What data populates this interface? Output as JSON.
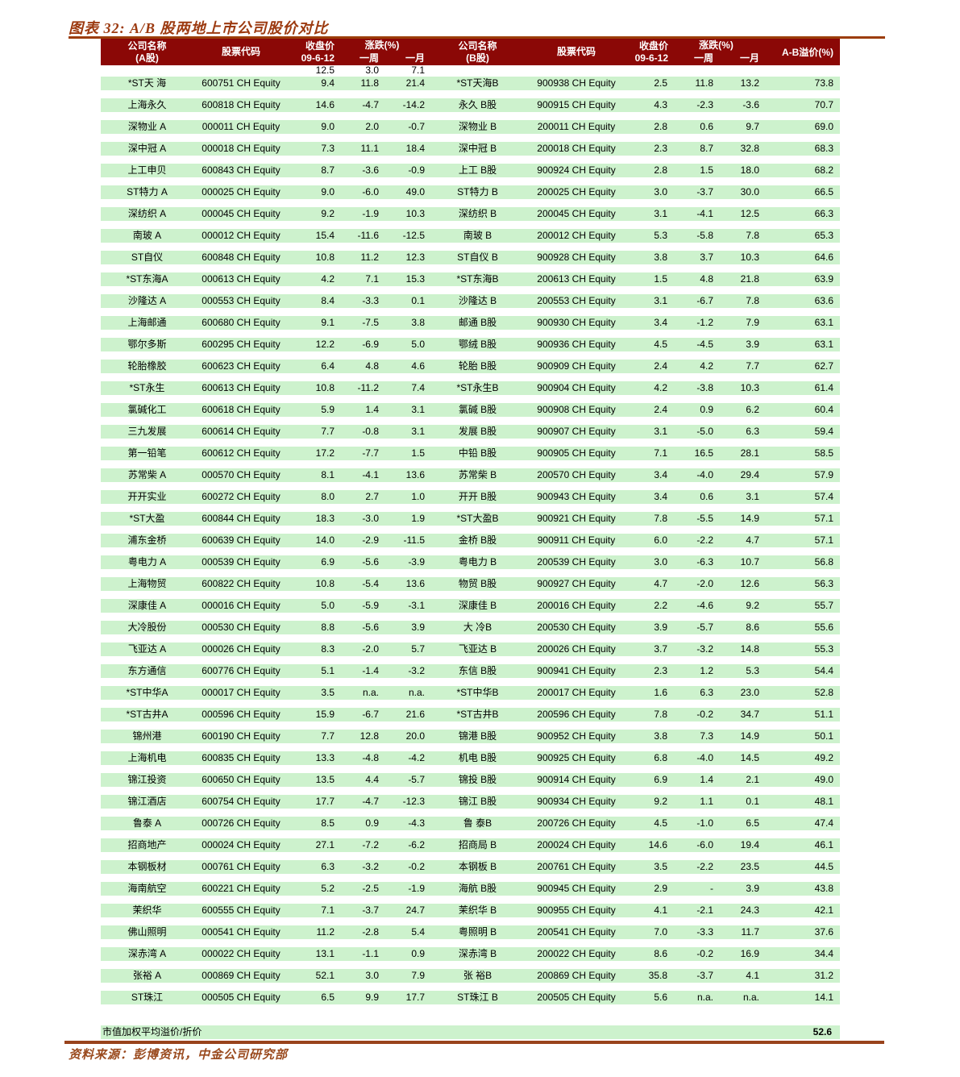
{
  "title": "图表 32: A/B 股两地上市公司股价对比",
  "colors": {
    "header_bg": "#8B0806",
    "row_bg": "#CDF2CD",
    "title_color": "#9C3A10",
    "rule_color": "#99431C",
    "source_color": "#9A4A1E"
  },
  "table": {
    "header": {
      "company_line1": "公司名称",
      "company_a_line2": "(A股)",
      "company_b_line2": "(B股)",
      "ticker": "股票代码",
      "close_line1": "收盘价",
      "close_line2": "09-6-12",
      "change": "涨跌(%)",
      "week": "一周",
      "month": "一月",
      "premium": "A-B溢价(%)"
    },
    "subrow": [
      "12.5",
      "3.0",
      "7.1"
    ],
    "rows": [
      [
        "*ST天 海",
        "600751 CH Equity",
        "9.4",
        "11.8",
        "21.4",
        "*ST天海B",
        "900938 CH Equity",
        "2.5",
        "11.8",
        "13.2",
        "73.8"
      ],
      [
        "上海永久",
        "600818 CH Equity",
        "14.6",
        "-4.7",
        "-14.2",
        "永久 B股",
        "900915 CH Equity",
        "4.3",
        "-2.3",
        "-3.6",
        "70.7"
      ],
      [
        "深物业 A",
        "000011 CH Equity",
        "9.0",
        "2.0",
        "-0.7",
        "深物业 B",
        "200011 CH Equity",
        "2.8",
        "0.6",
        "9.7",
        "69.0"
      ],
      [
        "深中冠 A",
        "000018 CH Equity",
        "7.3",
        "11.1",
        "18.4",
        "深中冠 B",
        "200018 CH Equity",
        "2.3",
        "8.7",
        "32.8",
        "68.3"
      ],
      [
        "上工申贝",
        "600843 CH Equity",
        "8.7",
        "-3.6",
        "-0.9",
        "上工 B股",
        "900924 CH Equity",
        "2.8",
        "1.5",
        "18.0",
        "68.2"
      ],
      [
        "ST特力 A",
        "000025 CH Equity",
        "9.0",
        "-6.0",
        "49.0",
        "ST特力 B",
        "200025 CH Equity",
        "3.0",
        "-3.7",
        "30.0",
        "66.5"
      ],
      [
        "深纺织 A",
        "000045 CH Equity",
        "9.2",
        "-1.9",
        "10.3",
        "深纺织 B",
        "200045 CH Equity",
        "3.1",
        "-4.1",
        "12.5",
        "66.3"
      ],
      [
        "南玻 A",
        "000012 CH Equity",
        "15.4",
        "-11.6",
        "-12.5",
        "南玻 B",
        "200012 CH Equity",
        "5.3",
        "-5.8",
        "7.8",
        "65.3"
      ],
      [
        "ST自仪",
        "600848 CH Equity",
        "10.8",
        "11.2",
        "12.3",
        "ST自仪 B",
        "900928 CH Equity",
        "3.8",
        "3.7",
        "10.3",
        "64.6"
      ],
      [
        "*ST东海A",
        "000613 CH Equity",
        "4.2",
        "7.1",
        "15.3",
        "*ST东海B",
        "200613 CH Equity",
        "1.5",
        "4.8",
        "21.8",
        "63.9"
      ],
      [
        "沙隆达 A",
        "000553 CH Equity",
        "8.4",
        "-3.3",
        "0.1",
        "沙隆达 B",
        "200553 CH Equity",
        "3.1",
        "-6.7",
        "7.8",
        "63.6"
      ],
      [
        "上海邮通",
        "600680 CH Equity",
        "9.1",
        "-7.5",
        "3.8",
        "邮通 B股",
        "900930 CH Equity",
        "3.4",
        "-1.2",
        "7.9",
        "63.1"
      ],
      [
        "鄂尔多斯",
        "600295 CH Equity",
        "12.2",
        "-6.9",
        "5.0",
        "鄂绒 B股",
        "900936 CH Equity",
        "4.5",
        "-4.5",
        "3.9",
        "63.1"
      ],
      [
        "轮胎橡胶",
        "600623 CH Equity",
        "6.4",
        "4.8",
        "4.6",
        "轮胎 B股",
        "900909 CH Equity",
        "2.4",
        "4.2",
        "7.7",
        "62.7"
      ],
      [
        "*ST永生",
        "600613 CH Equity",
        "10.8",
        "-11.2",
        "7.4",
        "*ST永生B",
        "900904 CH Equity",
        "4.2",
        "-3.8",
        "10.3",
        "61.4"
      ],
      [
        "氯碱化工",
        "600618 CH Equity",
        "5.9",
        "1.4",
        "3.1",
        "氯碱 B股",
        "900908 CH Equity",
        "2.4",
        "0.9",
        "6.2",
        "60.4"
      ],
      [
        "三九发展",
        "600614 CH Equity",
        "7.7",
        "-0.8",
        "3.1",
        "发展 B股",
        "900907 CH Equity",
        "3.1",
        "-5.0",
        "6.3",
        "59.4"
      ],
      [
        "第一铅笔",
        "600612 CH Equity",
        "17.2",
        "-7.7",
        "1.5",
        "中铅 B股",
        "900905 CH Equity",
        "7.1",
        "16.5",
        "28.1",
        "58.5"
      ],
      [
        "苏常柴 A",
        "000570 CH Equity",
        "8.1",
        "-4.1",
        "13.6",
        "苏常柴 B",
        "200570 CH Equity",
        "3.4",
        "-4.0",
        "29.4",
        "57.9"
      ],
      [
        "开开实业",
        "600272 CH Equity",
        "8.0",
        "2.7",
        "1.0",
        "开开 B股",
        "900943 CH Equity",
        "3.4",
        "0.6",
        "3.1",
        "57.4"
      ],
      [
        "*ST大盈",
        "600844 CH Equity",
        "18.3",
        "-3.0",
        "1.9",
        "*ST大盈B",
        "900921 CH Equity",
        "7.8",
        "-5.5",
        "14.9",
        "57.1"
      ],
      [
        "浦东金桥",
        "600639 CH Equity",
        "14.0",
        "-2.9",
        "-11.5",
        "金桥 B股",
        "900911 CH Equity",
        "6.0",
        "-2.2",
        "4.7",
        "57.1"
      ],
      [
        "粤电力 A",
        "000539 CH Equity",
        "6.9",
        "-5.6",
        "-3.9",
        "粤电力 B",
        "200539 CH Equity",
        "3.0",
        "-6.3",
        "10.7",
        "56.8"
      ],
      [
        "上海物贸",
        "600822 CH Equity",
        "10.8",
        "-5.4",
        "13.6",
        "物贸 B股",
        "900927 CH Equity",
        "4.7",
        "-2.0",
        "12.6",
        "56.3"
      ],
      [
        "深康佳 A",
        "000016 CH Equity",
        "5.0",
        "-5.9",
        "-3.1",
        "深康佳 B",
        "200016 CH Equity",
        "2.2",
        "-4.6",
        "9.2",
        "55.7"
      ],
      [
        "大冷股份",
        "000530 CH Equity",
        "8.8",
        "-5.6",
        "3.9",
        "大 冷B",
        "200530 CH Equity",
        "3.9",
        "-5.7",
        "8.6",
        "55.6"
      ],
      [
        "飞亚达 A",
        "000026 CH Equity",
        "8.3",
        "-2.0",
        "5.7",
        "飞亚达 B",
        "200026 CH Equity",
        "3.7",
        "-3.2",
        "14.8",
        "55.3"
      ],
      [
        "东方通信",
        "600776 CH Equity",
        "5.1",
        "-1.4",
        "-3.2",
        "东信 B股",
        "900941 CH Equity",
        "2.3",
        "1.2",
        "5.3",
        "54.4"
      ],
      [
        "*ST中华A",
        "000017 CH Equity",
        "3.5",
        "n.a.",
        "n.a.",
        "*ST中华B",
        "200017 CH Equity",
        "1.6",
        "6.3",
        "23.0",
        "52.8"
      ],
      [
        "*ST古井A",
        "000596 CH Equity",
        "15.9",
        "-6.7",
        "21.6",
        "*ST古井B",
        "200596 CH Equity",
        "7.8",
        "-0.2",
        "34.7",
        "51.1"
      ],
      [
        "锦州港",
        "600190 CH Equity",
        "7.7",
        "12.8",
        "20.0",
        "锦港 B股",
        "900952 CH Equity",
        "3.8",
        "7.3",
        "14.9",
        "50.1"
      ],
      [
        "上海机电",
        "600835 CH Equity",
        "13.3",
        "-4.8",
        "-4.2",
        "机电 B股",
        "900925 CH Equity",
        "6.8",
        "-4.0",
        "14.5",
        "49.2"
      ],
      [
        "锦江投资",
        "600650 CH Equity",
        "13.5",
        "4.4",
        "-5.7",
        "锦投 B股",
        "900914 CH Equity",
        "6.9",
        "1.4",
        "2.1",
        "49.0"
      ],
      [
        "锦江酒店",
        "600754 CH Equity",
        "17.7",
        "-4.7",
        "-12.3",
        "锦江 B股",
        "900934 CH Equity",
        "9.2",
        "1.1",
        "0.1",
        "48.1"
      ],
      [
        "鲁泰 A",
        "000726 CH Equity",
        "8.5",
        "0.9",
        "-4.3",
        "鲁 泰B",
        "200726 CH Equity",
        "4.5",
        "-1.0",
        "6.5",
        "47.4"
      ],
      [
        "招商地产",
        "000024 CH Equity",
        "27.1",
        "-7.2",
        "-6.2",
        "招商局 B",
        "200024 CH Equity",
        "14.6",
        "-6.0",
        "19.4",
        "46.1"
      ],
      [
        "本钢板材",
        "000761 CH Equity",
        "6.3",
        "-3.2",
        "-0.2",
        "本钢板 B",
        "200761 CH Equity",
        "3.5",
        "-2.2",
        "23.5",
        "44.5"
      ],
      [
        "海南航空",
        "600221 CH Equity",
        "5.2",
        "-2.5",
        "-1.9",
        "海航 B股",
        "900945 CH Equity",
        "2.9",
        "-",
        "3.9",
        "43.8"
      ],
      [
        "茉织华",
        "600555 CH Equity",
        "7.1",
        "-3.7",
        "24.7",
        "茉织华 B",
        "900955 CH Equity",
        "4.1",
        "-2.1",
        "24.3",
        "42.1"
      ],
      [
        "佛山照明",
        "000541 CH Equity",
        "11.2",
        "-2.8",
        "5.4",
        "粤照明 B",
        "200541 CH Equity",
        "7.0",
        "-3.3",
        "11.7",
        "37.6"
      ],
      [
        "深赤湾 A",
        "000022 CH Equity",
        "13.1",
        "-1.1",
        "0.9",
        "深赤湾 B",
        "200022 CH Equity",
        "8.6",
        "-0.2",
        "16.9",
        "34.4"
      ],
      [
        "张裕 A",
        "000869 CH Equity",
        "52.1",
        "3.0",
        "7.9",
        "张 裕B",
        "200869 CH Equity",
        "35.8",
        "-3.7",
        "4.1",
        "31.2"
      ],
      [
        "ST珠江",
        "000505 CH Equity",
        "6.5",
        "9.9",
        "17.7",
        "ST珠江 B",
        "200505 CH Equity",
        "5.6",
        "n.a.",
        "n.a.",
        "14.1"
      ]
    ],
    "footer": {
      "label": "市值加权平均溢价/折价",
      "value": "52.6"
    }
  },
  "source": "资料来源：彭博资讯，中金公司研究部"
}
